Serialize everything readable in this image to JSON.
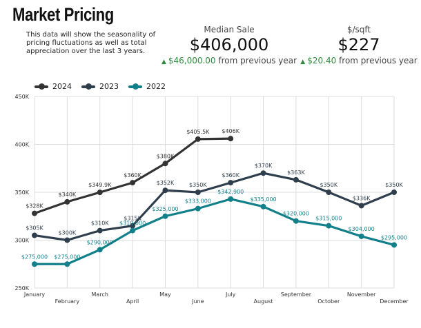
{
  "header": {
    "title": "Market Pricing",
    "description": "This data will show the seasonality of pricing fluctuations as well as total appreciation over the last 3 years."
  },
  "metrics": {
    "median_sale": {
      "label": "Median Sale",
      "value": "$406,000",
      "change": "$46,000.00",
      "change_suffix": "from previous year",
      "arrow": "up-arrow-icon"
    },
    "price_sqft": {
      "label": "$/sqft",
      "value": "$227",
      "change": "$20.40",
      "change_suffix": "from previous year",
      "arrow": "up-arrow-icon"
    }
  },
  "colors": {
    "2024": "#333333",
    "2023": "#2f3e4c",
    "2022": "#12808a",
    "positive": "#2e8b3e",
    "grid": "#dddddd"
  },
  "chart_data": {
    "type": "line",
    "categories": [
      "January",
      "February",
      "March",
      "April",
      "May",
      "June",
      "July",
      "August",
      "September",
      "October",
      "November",
      "December"
    ],
    "yticks": [
      "250K",
      "300K",
      "350K",
      "400K",
      "450K"
    ],
    "ylim": [
      250000,
      450000
    ],
    "grid": true,
    "legend": "top-left",
    "series": [
      {
        "name": "2024",
        "values": [
          328000,
          340000,
          349900,
          360000,
          380000,
          405500,
          406000,
          null,
          null,
          null,
          null,
          null
        ],
        "labels": [
          "$328K",
          "$340K",
          "$349.9K",
          "$360K",
          "$380K",
          "$405.5K",
          "$406K",
          null,
          null,
          null,
          null,
          null
        ]
      },
      {
        "name": "2023",
        "values": [
          305000,
          300000,
          310000,
          315000,
          352000,
          350000,
          360000,
          370000,
          363000,
          350000,
          336000,
          350000
        ],
        "labels": [
          "$305K",
          "$300K",
          "$310K",
          "$315K",
          "$352K",
          "$350K",
          "$360K",
          "$370K",
          "$363K",
          "$350K",
          "$336K",
          "$350K"
        ]
      },
      {
        "name": "2022",
        "values": [
          275000,
          275000,
          290000,
          310000,
          325000,
          333000,
          342900,
          335000,
          320000,
          315000,
          304000,
          295000
        ],
        "labels": [
          "$275,000",
          "$275,000",
          "$290,000",
          "$310,000",
          "$325,000",
          "$333,000",
          "$342,900",
          "$335,000",
          "$320,000",
          "$315,000",
          "$304,000",
          "$295,000"
        ]
      }
    ]
  }
}
